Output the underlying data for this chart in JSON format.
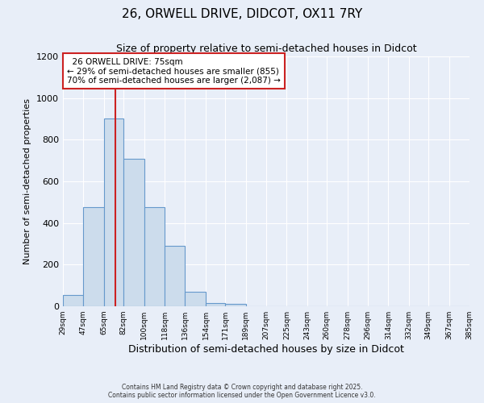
{
  "title1": "26, ORWELL DRIVE, DIDCOT, OX11 7RY",
  "title2": "Size of property relative to semi-detached houses in Didcot",
  "xlabel": "Distribution of semi-detached houses by size in Didcot",
  "ylabel": "Number of semi-detached properties",
  "bar_edges": [
    29,
    47,
    65,
    82,
    100,
    118,
    136,
    154,
    171,
    189,
    207,
    225,
    243,
    260,
    278,
    296,
    314,
    332,
    349,
    367,
    385
  ],
  "bar_heights": [
    55,
    475,
    900,
    710,
    475,
    290,
    70,
    15,
    10,
    0,
    0,
    0,
    0,
    0,
    0,
    0,
    0,
    0,
    0,
    0
  ],
  "bar_color": "#ccdcec",
  "bar_edge_color": "#6699cc",
  "property_size": 75,
  "property_label": "26 ORWELL DRIVE: 75sqm",
  "smaller_pct": 29,
  "smaller_count": 855,
  "larger_pct": 70,
  "larger_count": 2087,
  "vline_color": "#cc2222",
  "annotation_box_facecolor": "#ffffff",
  "annotation_box_edgecolor": "#cc2222",
  "bg_color": "#e8eef8",
  "ylim": [
    0,
    1200
  ],
  "footnote1": "Contains HM Land Registry data © Crown copyright and database right 2025.",
  "footnote2": "Contains public sector information licensed under the Open Government Licence v3.0.",
  "title1_fontsize": 11,
  "title2_fontsize": 9,
  "xlabel_fontsize": 9,
  "ylabel_fontsize": 8
}
